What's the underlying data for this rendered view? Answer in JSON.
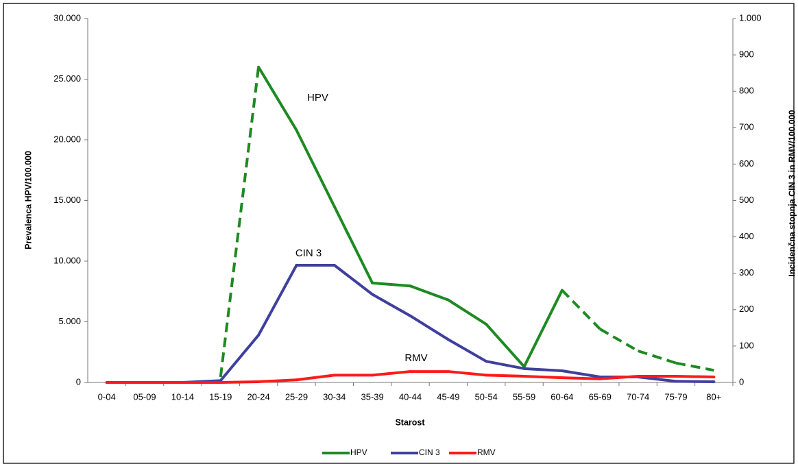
{
  "chart_data": {
    "type": "line",
    "xlabel": "Starost",
    "ylabel": "Prevalenca HPV/100.000",
    "y2label": "Incidenčna stopnja CIN 3 in RMV/100.000",
    "categories": [
      "0-04",
      "05-09",
      "10-14",
      "15-19",
      "20-24",
      "25-29",
      "30-34",
      "35-39",
      "40-44",
      "45-49",
      "50-54",
      "55-59",
      "60-64",
      "65-69",
      "70-74",
      "75-79",
      "80+"
    ],
    "series": [
      {
        "name": "HPV",
        "color": "#1e8a22",
        "axis": "y",
        "dashed_segments": [
          [
            3,
            4
          ],
          [
            12,
            16
          ]
        ],
        "values": [
          null,
          null,
          null,
          450,
          26000,
          20800,
          14500,
          8200,
          7950,
          6800,
          4800,
          1300,
          7600,
          4400,
          2600,
          1600,
          1000
        ]
      },
      {
        "name": "CIN 3",
        "color": "#3f3f9f",
        "axis": "y2",
        "values": [
          0,
          0,
          0,
          5,
          130,
          322,
          322,
          242,
          183,
          118,
          58,
          38,
          32,
          15,
          15,
          3,
          2
        ]
      },
      {
        "name": "RMV",
        "color": "#ff1a1a",
        "axis": "y2",
        "values": [
          0,
          0,
          0,
          0,
          2,
          7,
          20,
          20,
          30,
          30,
          20,
          17,
          13,
          10,
          17,
          17,
          15
        ]
      }
    ],
    "annotations": [
      "HPV",
      "CIN 3",
      "RMV"
    ],
    "ylim": [
      0,
      30000
    ],
    "yticks": [
      0,
      {
        "value": 5000,
        "label": "5.000"
      },
      {
        "value": 10000,
        "label": "10.000"
      },
      {
        "value": 15000,
        "label": "15.000"
      },
      {
        "value": 20000,
        "label": "20.000"
      },
      {
        "value": 25000,
        "label": "25.000"
      },
      {
        "value": 30000,
        "label": "30.000"
      }
    ],
    "y2lim": [
      0,
      1000
    ],
    "y2ticks": [
      0,
      100,
      200,
      300,
      400,
      500,
      600,
      700,
      800,
      900,
      {
        "value": 1000,
        "label": "1.000"
      }
    ],
    "grid": false,
    "legend": "bottom"
  }
}
